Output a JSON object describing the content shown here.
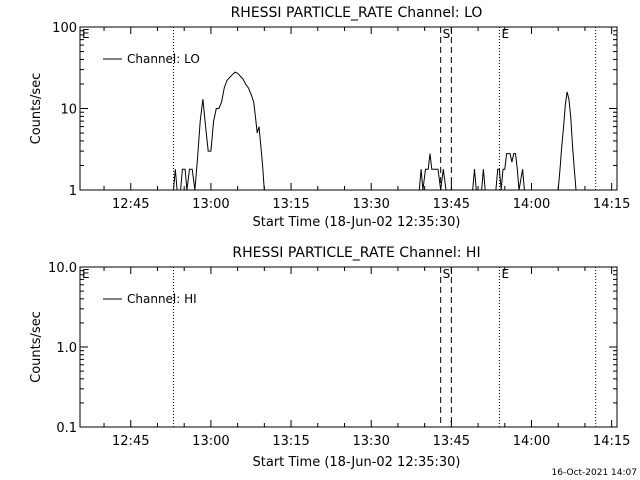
{
  "footer_timestamp": "16-Oct-2021 14:07",
  "chart_data": [
    {
      "type": "line",
      "title": "RHESSI PARTICLE_RATE Channel: LO",
      "xlabel": "Start Time (18-Jun-02 12:35:30)",
      "ylabel": "Counts/sec",
      "xlim": [
        "12:35:30",
        "14:16:00"
      ],
      "x_ticks": [
        "12:45",
        "13:00",
        "13:15",
        "13:30",
        "13:45",
        "14:00",
        "14:15"
      ],
      "y_scale": "log",
      "ylim": [
        1,
        100
      ],
      "y_ticks": [
        "1",
        "10",
        "100"
      ],
      "legend": {
        "placement": "top-left",
        "entries": [
          "Channel: LO"
        ]
      },
      "markers": [
        {
          "label": "E",
          "time": "12:35:30",
          "style": "dotted"
        },
        {
          "label": "",
          "time": "12:53:00",
          "style": "dotted"
        },
        {
          "label": "S",
          "time": "13:43:00",
          "style": "dashed"
        },
        {
          "label": "",
          "time": "13:45:00",
          "style": "dashed"
        },
        {
          "label": "E",
          "time": "13:54:00",
          "style": "dotted"
        },
        {
          "label": "",
          "time": "14:12:00",
          "style": "dotted"
        }
      ],
      "series": [
        {
          "points": [
            [
              "12:53:00",
              1
            ],
            [
              "12:53:20",
              1.8
            ],
            [
              "12:53:40",
              1
            ],
            [
              "12:54:20",
              1
            ],
            [
              "12:54:40",
              1.8
            ],
            [
              "12:55:10",
              1.8
            ],
            [
              "12:55:30",
              1
            ],
            [
              "12:56:00",
              1.8
            ],
            [
              "12:56:30",
              1.8
            ],
            [
              "12:57:00",
              1
            ],
            [
              "12:57:30",
              2.5
            ],
            [
              "12:58:00",
              7
            ],
            [
              "12:58:30",
              13
            ],
            [
              "12:59:00",
              6
            ],
            [
              "12:59:30",
              3
            ],
            [
              "13:00:00",
              3
            ],
            [
              "13:00:30",
              7
            ],
            [
              "13:01:00",
              10
            ],
            [
              "13:01:30",
              10
            ],
            [
              "13:02:00",
              12
            ],
            [
              "13:02:30",
              18
            ],
            [
              "13:03:00",
              22
            ],
            [
              "13:03:30",
              24
            ],
            [
              "13:04:00",
              26
            ],
            [
              "13:04:30",
              28
            ],
            [
              "13:05:00",
              27
            ],
            [
              "13:05:30",
              25
            ],
            [
              "13:06:00",
              23
            ],
            [
              "13:06:30",
              20
            ],
            [
              "13:07:00",
              18
            ],
            [
              "13:07:30",
              15
            ],
            [
              "13:08:00",
              12
            ],
            [
              "13:08:20",
              8
            ],
            [
              "13:08:40",
              5
            ],
            [
              "13:09:00",
              6
            ],
            [
              "13:09:20",
              3.5
            ],
            [
              "13:09:40",
              2
            ],
            [
              "13:10:00",
              1
            ],
            [
              "13:39:00",
              1
            ],
            [
              "13:39:20",
              1.8
            ],
            [
              "13:39:40",
              1
            ],
            [
              "13:40:10",
              1.8
            ],
            [
              "13:40:40",
              1.8
            ],
            [
              "13:41:00",
              2.8
            ],
            [
              "13:41:20",
              1.8
            ],
            [
              "13:42:00",
              1.8
            ],
            [
              "13:42:30",
              1.8
            ],
            [
              "13:43:00",
              1
            ],
            [
              "13:43:30",
              1.8
            ],
            [
              "13:44:00",
              1
            ],
            [
              "13:49:00",
              1
            ],
            [
              "13:49:20",
              1.8
            ],
            [
              "13:49:40",
              1
            ],
            [
              "13:50:40",
              1
            ],
            [
              "13:51:00",
              1.8
            ],
            [
              "13:51:20",
              1
            ],
            [
              "13:53:20",
              1
            ],
            [
              "13:53:40",
              1.8
            ],
            [
              "13:54:00",
              1.8
            ],
            [
              "13:54:20",
              1
            ],
            [
              "13:54:40",
              1.8
            ],
            [
              "13:55:00",
              1.8
            ],
            [
              "13:55:20",
              2.8
            ],
            [
              "13:56:00",
              2.8
            ],
            [
              "13:56:20",
              2.2
            ],
            [
              "13:56:40",
              2.8
            ],
            [
              "13:57:00",
              2.8
            ],
            [
              "13:57:20",
              1.8
            ],
            [
              "13:57:40",
              1
            ],
            [
              "13:58:20",
              1.8
            ],
            [
              "13:58:40",
              1
            ],
            [
              "14:05:00",
              1
            ],
            [
              "14:05:20",
              1.8
            ],
            [
              "14:05:40",
              3.5
            ],
            [
              "14:06:00",
              6
            ],
            [
              "14:06:20",
              11
            ],
            [
              "14:06:40",
              16
            ],
            [
              "14:07:00",
              13
            ],
            [
              "14:07:20",
              8
            ],
            [
              "14:07:40",
              3.5
            ],
            [
              "14:08:00",
              1.8
            ],
            [
              "14:08:20",
              1
            ]
          ]
        }
      ]
    },
    {
      "type": "line",
      "title": "RHESSI PARTICLE_RATE Channel: HI",
      "xlabel": "Start Time (18-Jun-02 12:35:30)",
      "ylabel": "Counts/sec",
      "xlim": [
        "12:35:30",
        "14:16:00"
      ],
      "x_ticks": [
        "12:45",
        "13:00",
        "13:15",
        "13:30",
        "13:45",
        "14:00",
        "14:15"
      ],
      "y_scale": "log",
      "ylim": [
        0.1,
        10
      ],
      "y_ticks": [
        "0.1",
        "1.0",
        "10.0"
      ],
      "legend": {
        "placement": "top-left",
        "entries": [
          "Channel: HI"
        ]
      },
      "markers": [
        {
          "label": "E",
          "time": "12:35:30",
          "style": "dotted"
        },
        {
          "label": "",
          "time": "12:53:00",
          "style": "dotted"
        },
        {
          "label": "S",
          "time": "13:43:00",
          "style": "dashed"
        },
        {
          "label": "",
          "time": "13:45:00",
          "style": "dashed"
        },
        {
          "label": "E",
          "time": "13:54:00",
          "style": "dotted"
        },
        {
          "label": "",
          "time": "14:12:00",
          "style": "dotted"
        }
      ],
      "series": [
        {
          "points": []
        }
      ]
    }
  ]
}
